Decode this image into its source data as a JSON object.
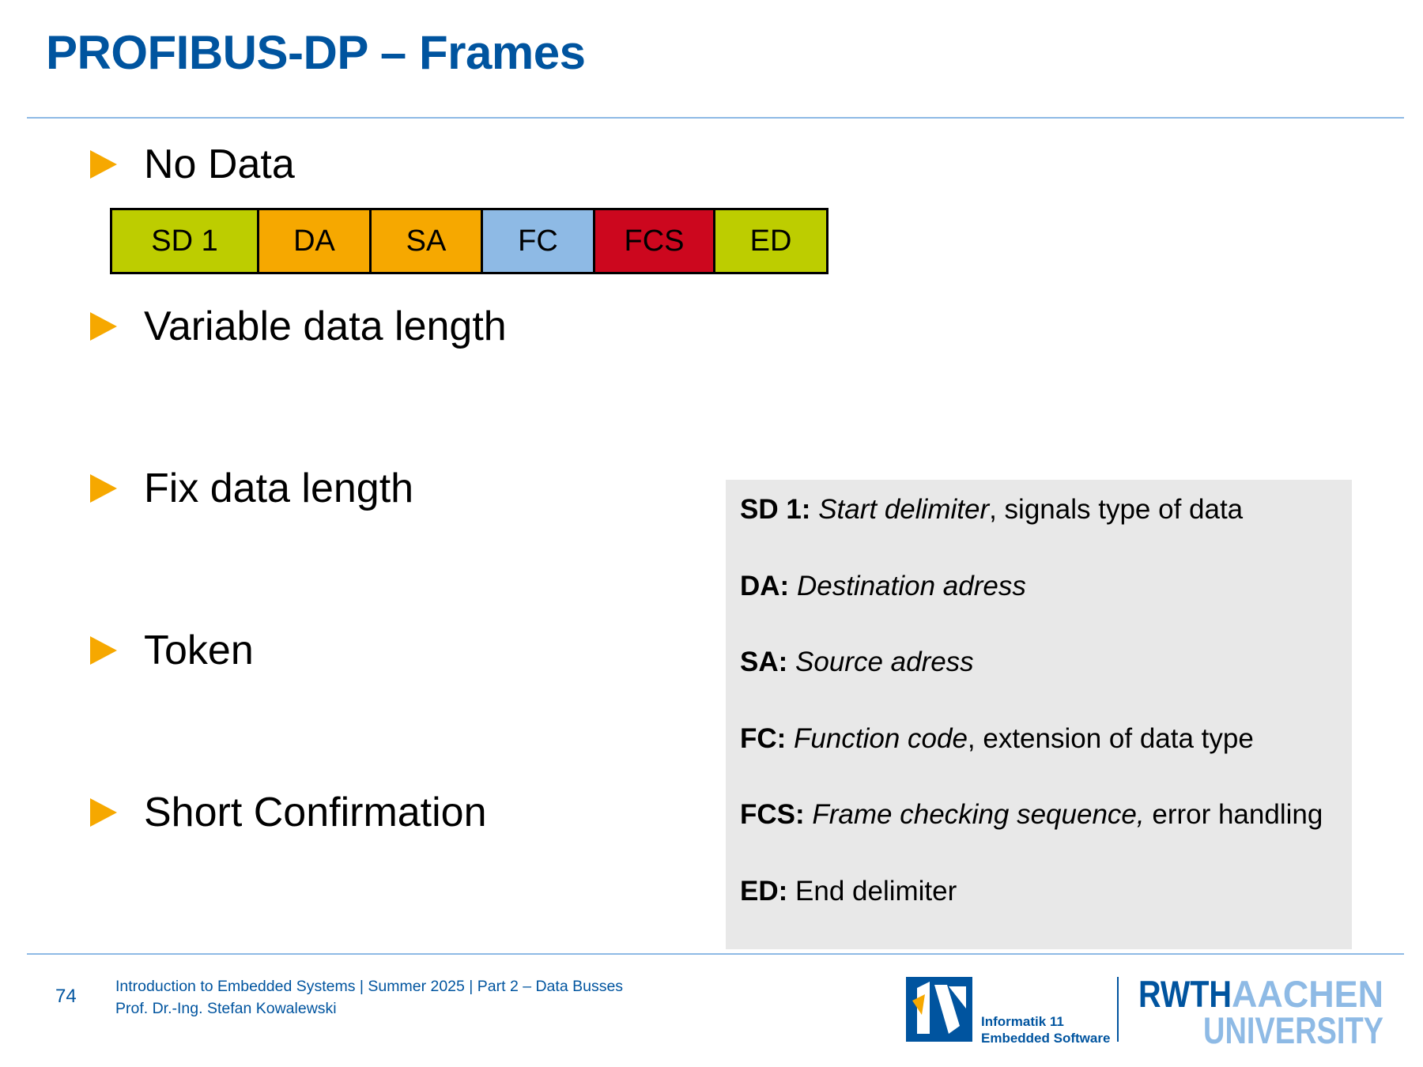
{
  "slide": {
    "title": "PROFIBUS-DP – Frames"
  },
  "bullets": [
    {
      "label": "No Data"
    },
    {
      "label": "Variable data length"
    },
    {
      "label": "Fix data length"
    },
    {
      "label": "Token"
    },
    {
      "label": "Short Confirmation"
    }
  ],
  "frame_no_data": {
    "fields": [
      {
        "label": "SD 1",
        "color": "#bdcd00"
      },
      {
        "label": "DA",
        "color": "#f6a800"
      },
      {
        "label": "SA",
        "color": "#f6a800"
      },
      {
        "label": "FC",
        "color": "#8ebae5"
      },
      {
        "label": "FCS",
        "color": "#cc071e"
      },
      {
        "label": "ED",
        "color": "#bdcd00"
      }
    ]
  },
  "legend": [
    {
      "term": "SD 1:",
      "expansion": "Start delimiter",
      "description": ", signals type of data"
    },
    {
      "term": "DA:",
      "expansion": "Destination adress",
      "description": ""
    },
    {
      "term": "SA:",
      "expansion": "Source adress",
      "description": ""
    },
    {
      "term": "FC:",
      "expansion": "Function code",
      "description": ", extension of data type"
    },
    {
      "term": "FCS:",
      "expansion": "Frame checking sequence,",
      "description": " error handling"
    },
    {
      "term": "ED:",
      "expansion": "",
      "description": "End delimiter"
    }
  ],
  "footer": {
    "page_number": "74",
    "course_line": "Introduction to Embedded Systems | Summer 2025 | Part 2 – Data Busses",
    "author_line": "Prof. Dr.-Ing. Stefan Kowalewski",
    "institute_line1": "Informatik 11",
    "institute_line2": "Embedded Software",
    "rwth_word1": "RWTH",
    "rwth_word2": "AACHEN",
    "rwth_word3": "UNIVERSITY"
  },
  "colors": {
    "title_blue": "#00549f",
    "rule_blue": "#8ebae5",
    "bullet_orange": "#f6a800",
    "legend_bg": "#e8e8e8",
    "rwth_light_blue": "#8ebae5"
  }
}
